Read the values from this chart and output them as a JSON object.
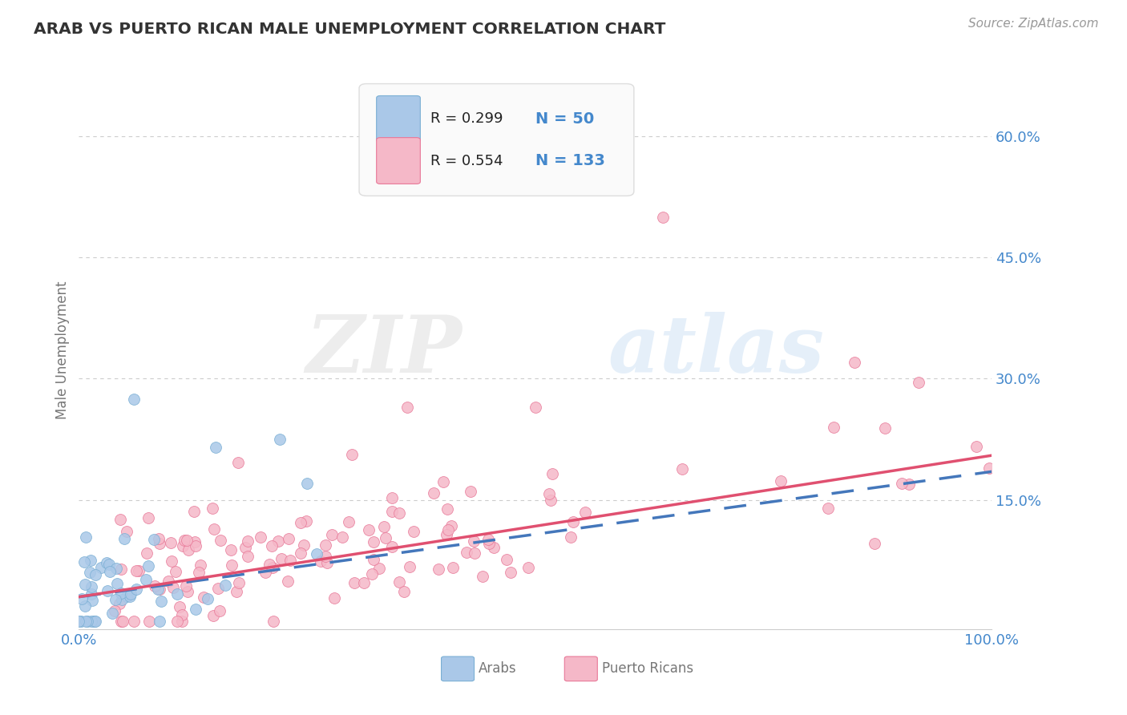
{
  "title": "ARAB VS PUERTO RICAN MALE UNEMPLOYMENT CORRELATION CHART",
  "source": "Source: ZipAtlas.com",
  "ylabel": "Male Unemployment",
  "xlim": [
    0.0,
    1.0
  ],
  "ylim": [
    -0.01,
    0.68
  ],
  "yticks": [
    0.0,
    0.15,
    0.3,
    0.45,
    0.6
  ],
  "ytick_labels": [
    "",
    "15.0%",
    "30.0%",
    "45.0%",
    "60.0%"
  ],
  "xtick_labels": [
    "0.0%",
    "100.0%"
  ],
  "arab_color": "#aac8e8",
  "arab_edge": "#7aafd4",
  "pr_color": "#f5b8c8",
  "pr_edge": "#e87898",
  "arab_line_color": "#4477bb",
  "pr_line_color": "#e05070",
  "arab_r": 0.299,
  "arab_n": 50,
  "pr_r": 0.554,
  "pr_n": 133,
  "watermark_zip": "ZIP",
  "watermark_atlas": "atlas",
  "background_color": "#ffffff",
  "grid_color": "#cccccc",
  "title_color": "#333333",
  "axis_label_color": "#777777",
  "tick_color": "#4488cc",
  "source_color": "#999999",
  "legend_box_color": "#f5f5f5",
  "legend_border_color": "#dddddd"
}
